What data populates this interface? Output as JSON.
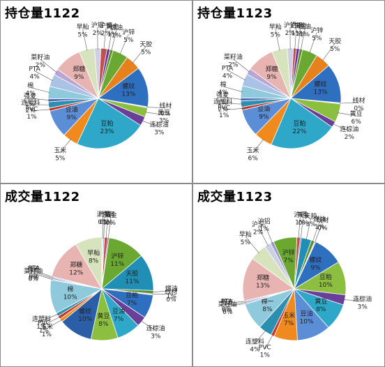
{
  "chart_data": [
    {
      "type": "pie",
      "title": "持仓量1122",
      "slices": [
        {
          "label": "沪铜",
          "value": 2,
          "text": "2%",
          "color": "#c0504d"
        },
        {
          "label": "黄金",
          "value": 1,
          "text": "1%",
          "color": "#7030a0"
        },
        {
          "label": "燃油",
          "value": 1,
          "text": "1%",
          "color": "#5f8f2f"
        },
        {
          "label": "沪锌",
          "value": 5,
          "text": "5%",
          "color": "#6aa832"
        },
        {
          "label": "天胶",
          "value": 5,
          "text": "5%",
          "color": "#e6821e"
        },
        {
          "label": "螺纹",
          "value": 13,
          "text": "13%",
          "color": "#2f6fbf"
        },
        {
          "label": "线材",
          "value": 0,
          "text": "0%",
          "color": "#dcdcdc"
        },
        {
          "label": "黄豆",
          "value": 3,
          "text": "3%",
          "color": "#8cbf3f"
        },
        {
          "label": "连棕油",
          "value": 3,
          "text": "3%",
          "color": "#6a3f9a"
        },
        {
          "label": "豆粕",
          "value": 23,
          "text": "23%",
          "color": "#2ea7c9"
        },
        {
          "label": "玉米",
          "value": 5,
          "text": "5%",
          "color": "#f08a1e"
        },
        {
          "label": "豆油",
          "value": 9,
          "text": "9%",
          "color": "#5b8ed6"
        },
        {
          "label": "PVC",
          "value": 1,
          "text": "1%",
          "color": "#c0392b"
        },
        {
          "label": "连塑料",
          "value": 2,
          "text": "2%",
          "color": "#2a8fb0"
        },
        {
          "label": "强麦",
          "value": 1,
          "text": "1%",
          "color": "#4f6db5"
        },
        {
          "label": "棉",
          "value": 4,
          "text": "4%",
          "color": "#8fc9dc"
        },
        {
          "label": "PTA",
          "value": 4,
          "text": "4%",
          "color": "#a9c2e6"
        },
        {
          "label": "菜籽油",
          "value": 2,
          "text": "2%",
          "color": "#b8a5d6"
        },
        {
          "label": "郑糖",
          "value": 9,
          "text": "9%",
          "color": "#e8b4b2"
        },
        {
          "label": "早籼",
          "value": 5,
          "text": "5%",
          "color": "#d6e3bd"
        },
        {
          "label": "沪铝",
          "value": 2,
          "text": "2%",
          "color": "#cfcfe3"
        }
      ]
    },
    {
      "type": "pie",
      "title": "持仓量1123",
      "slices": [
        {
          "label": "沪铜",
          "value": 1,
          "text": "1%",
          "color": "#c0504d"
        },
        {
          "label": "黄金",
          "value": 1,
          "text": "1%",
          "color": "#7030a0"
        },
        {
          "label": "燃油",
          "value": 1,
          "text": "1%",
          "color": "#5f8f2f"
        },
        {
          "label": "沪锌",
          "value": 5,
          "text": "5%",
          "color": "#6aa832"
        },
        {
          "label": "天胶",
          "value": 5,
          "text": "5%",
          "color": "#e6821e"
        },
        {
          "label": "螺纹",
          "value": 13,
          "text": "13%",
          "color": "#2f6fbf"
        },
        {
          "label": "线材",
          "value": 0,
          "text": "0%",
          "color": "#dcdcdc"
        },
        {
          "label": "黄豆",
          "value": 6,
          "text": "6%",
          "color": "#8cbf3f"
        },
        {
          "label": "连棕油",
          "value": 2,
          "text": "2%",
          "color": "#6a3f9a"
        },
        {
          "label": "豆粕",
          "value": 22,
          "text": "22%",
          "color": "#2ea7c9"
        },
        {
          "label": "玉米",
          "value": 6,
          "text": "6%",
          "color": "#f08a1e"
        },
        {
          "label": "豆油",
          "value": 9,
          "text": "9%",
          "color": "#5b8ed6"
        },
        {
          "label": "PVC",
          "value": 1,
          "text": "1%",
          "color": "#c0392b"
        },
        {
          "label": "连塑料",
          "value": 2,
          "text": "2%",
          "color": "#2a8fb0"
        },
        {
          "label": "强麦",
          "value": 1,
          "text": "1%",
          "color": "#4f6db5"
        },
        {
          "label": "棉",
          "value": 4,
          "text": "4%",
          "color": "#8fc9dc"
        },
        {
          "label": "PTA",
          "value": 4,
          "text": "4%",
          "color": "#a9c2e6"
        },
        {
          "label": "菜籽油",
          "value": 2,
          "text": "2%",
          "color": "#b8a5d6"
        },
        {
          "label": "郑糖",
          "value": 9,
          "text": "9%",
          "color": "#e8b4b2"
        },
        {
          "label": "早籼",
          "value": 5,
          "text": "5%",
          "color": "#d6e3bd"
        },
        {
          "label": "沪铝",
          "value": 2,
          "text": "2%",
          "color": "#cfcfe3"
        }
      ]
    },
    {
      "type": "pie",
      "title": "成交量1122",
      "slices": [
        {
          "label": "沪铜",
          "value": 1,
          "text": "1%",
          "color": "#c0504d"
        },
        {
          "label": "黄金",
          "value": 0,
          "text": "0%",
          "color": "#7030a0"
        },
        {
          "label": "沪锌",
          "value": 11,
          "text": "11%",
          "color": "#6aa832"
        },
        {
          "label": "天胶",
          "value": 11,
          "text": "11%",
          "color": "#1f8fb5"
        },
        {
          "label": "燃油",
          "value": 1,
          "text": "1%",
          "color": "#5f8f2f"
        },
        {
          "label": "线材",
          "value": 0,
          "text": "0%",
          "color": "#dcdcdc"
        },
        {
          "label": "豆粕",
          "value": 7,
          "text": "7%",
          "color": "#2f6fbf"
        },
        {
          "label": "连棕油",
          "value": 3,
          "text": "3%",
          "color": "#6a3f9a"
        },
        {
          "label": "豆油",
          "value": 7,
          "text": "7%",
          "color": "#2ea7c9"
        },
        {
          "label": "黄豆",
          "value": 8,
          "text": "8%",
          "color": "#8cbf3f"
        },
        {
          "label": "螺纹",
          "value": 10,
          "text": "10%",
          "color": "#2a5fa8"
        },
        {
          "label": "玉米",
          "value": 1,
          "text": "1%",
          "color": "#f08a1e"
        },
        {
          "label": "PVC",
          "value": 1,
          "text": "1%",
          "color": "#c0392b"
        },
        {
          "label": "连塑料",
          "value": 1,
          "text": "1%",
          "color": "#2a8fb0"
        },
        {
          "label": "棉",
          "value": 10,
          "text": "10%",
          "color": "#8fc9dc"
        },
        {
          "label": "菜籽油",
          "value": 0,
          "text": "0%",
          "color": "#b8a5d6"
        },
        {
          "label": "强麦",
          "value": 0,
          "text": "0%",
          "color": "#4f6db5"
        },
        {
          "label": "PTA",
          "value": 0,
          "text": "0%",
          "color": "#a9c2e6"
        },
        {
          "label": "郑糖",
          "value": 12,
          "text": "12%",
          "color": "#e8b4b2"
        },
        {
          "label": "早籼",
          "value": 8,
          "text": "8%",
          "color": "#d6e3bd"
        },
        {
          "label": "沪深",
          "value": 0,
          "text": "0%",
          "color": "#cfcfe3"
        },
        {
          "label": "沪铝",
          "value": 0,
          "text": "0%",
          "color": "#9b9bc9"
        }
      ]
    },
    {
      "type": "pie",
      "title": "成交量1123",
      "slices": [
        {
          "label": "沪铜",
          "value": 1,
          "text": "1%",
          "color": "#c0504d"
        },
        {
          "label": "黄金",
          "value": 0,
          "text": "0%",
          "color": "#7030a0"
        },
        {
          "label": "天胶",
          "value": 3,
          "text": "3%",
          "color": "#1f8fb5"
        },
        {
          "label": "燃油",
          "value": 1,
          "text": "1%",
          "color": "#5f8f2f"
        },
        {
          "label": "线材",
          "value": 0,
          "text": "0%",
          "color": "#dcdcdc"
        },
        {
          "label": "螺纹",
          "value": 9,
          "text": "9%",
          "color": "#2f6fbf"
        },
        {
          "label": "豆粕",
          "value": 10,
          "text": "10%",
          "color": "#8cbf3f"
        },
        {
          "label": "连棕油",
          "value": 3,
          "text": "3%",
          "color": "#6a3f9a"
        },
        {
          "label": "黄豆",
          "value": 8,
          "text": "8%",
          "color": "#2ea7c9"
        },
        {
          "label": "豆油",
          "value": 10,
          "text": "10%",
          "color": "#5b8ed6"
        },
        {
          "label": "玉米",
          "value": 7,
          "text": "7%",
          "color": "#f08a1e"
        },
        {
          "label": "PVC",
          "value": 1,
          "text": "1%",
          "color": "#c0392b"
        },
        {
          "label": "连塑料",
          "value": 4,
          "text": "4%",
          "color": "#2a8fb0"
        },
        {
          "label": "棉一",
          "value": 8,
          "text": "8%",
          "color": "#8fc9dc"
        },
        {
          "label": "菜籽油",
          "value": 0,
          "text": "0%",
          "color": "#b8a5d6"
        },
        {
          "label": "强麦",
          "value": 0,
          "text": "0%",
          "color": "#4f6db5"
        },
        {
          "label": "PTA",
          "value": 0,
          "text": "0%",
          "color": "#a9c2e6"
        },
        {
          "label": "郑糖",
          "value": 13,
          "text": "13%",
          "color": "#e8b4b2"
        },
        {
          "label": "早籼",
          "value": 5,
          "text": "5%",
          "color": "#d6e3bd"
        },
        {
          "label": "沪深",
          "value": 2,
          "text": "2%",
          "color": "#cfcfe3"
        },
        {
          "label": "沪铝",
          "value": 1,
          "text": "1%",
          "color": "#9b9bc9"
        },
        {
          "label": "沪锌",
          "value": 7,
          "text": "7%",
          "color": "#6aa832"
        }
      ]
    }
  ]
}
